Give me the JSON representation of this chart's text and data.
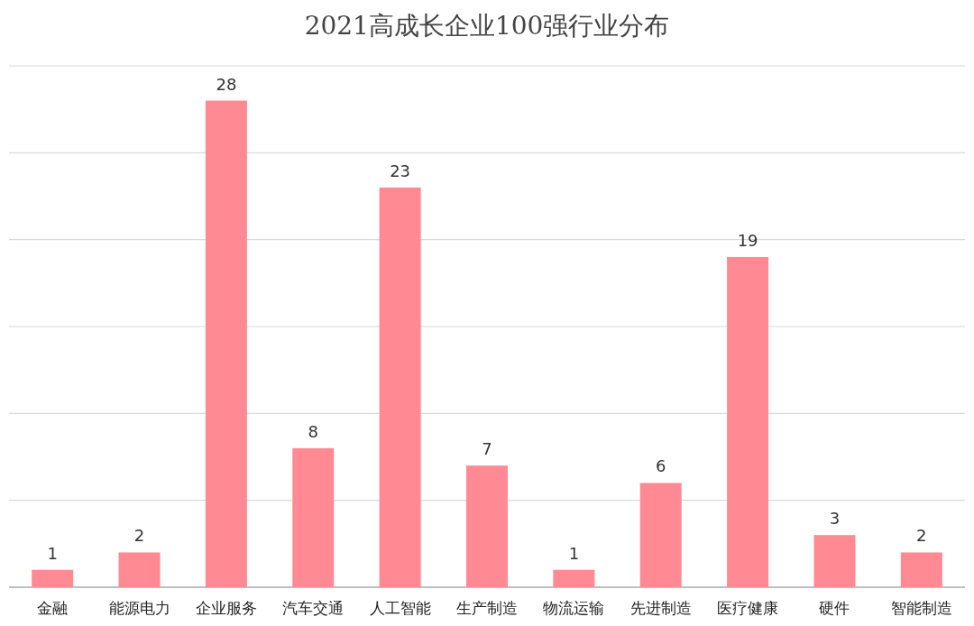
{
  "chart_data": {
    "type": "bar",
    "title": "2021高成长企业100强行业分布",
    "categories": [
      "金融",
      "能源电力",
      "企业服务",
      "汽车交通",
      "人工智能",
      "生产制造",
      "物流运输",
      "先进制造",
      "医疗健康",
      "硬件",
      "智能制造"
    ],
    "values": [
      1,
      2,
      28,
      8,
      23,
      7,
      1,
      6,
      19,
      3,
      2
    ],
    "color": "#ff8a94",
    "ylim": [
      0,
      30
    ],
    "yticks": [
      {
        "value": 0,
        "label": null
      },
      {
        "value": 5,
        "label": null
      },
      {
        "value": 10,
        "label": null
      },
      {
        "value": 15,
        "label": null
      },
      {
        "value": 20,
        "label": null
      },
      {
        "value": 25,
        "label": null
      },
      {
        "value": 30,
        "label": null
      }
    ],
    "grid": "y",
    "data_labels": true,
    "tick_labels": "x"
  }
}
